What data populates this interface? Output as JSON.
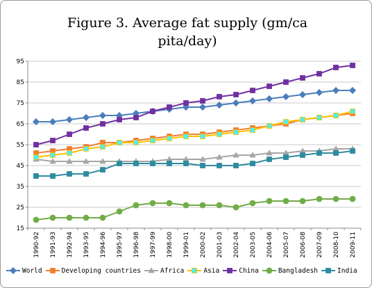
{
  "chart_data": {
    "type": "line",
    "title": "Figure 3. Average fat supply (gm/capita/day)",
    "title_lines": [
      "Figure 3. Average fat supply (gm/ca",
      "pita/day)"
    ],
    "xlabel": "",
    "ylabel": "",
    "ylim": [
      15,
      95
    ],
    "yticks": [
      15,
      25,
      35,
      45,
      55,
      65,
      75,
      85,
      95
    ],
    "grid": "horizontal",
    "legend_position": "bottom",
    "categories": [
      "1990-92",
      "1991-93",
      "1992-94",
      "1993-95",
      "1994-96",
      "1995-97",
      "1996-98",
      "1997-99",
      "1998-00",
      "1999-01",
      "2000-02",
      "2001-03",
      "2002-04",
      "2003-05",
      "2004-06",
      "2005-07",
      "2006-08",
      "2007-09",
      "2008-10",
      "2009-11"
    ],
    "series": [
      {
        "name": "World",
        "color": "#4a7ebb",
        "marker": "diamond",
        "values": [
          66,
          66,
          67,
          68,
          69,
          69,
          70,
          71,
          72,
          73,
          73,
          74,
          75,
          76,
          77,
          78,
          79,
          80,
          81,
          81
        ]
      },
      {
        "name": "Developing countries",
        "color": "#f07f2e",
        "marker": "square",
        "values": [
          51,
          52,
          53,
          54,
          56,
          56,
          57,
          58,
          59,
          60,
          60,
          61,
          62,
          63,
          64,
          65,
          67,
          68,
          69,
          70
        ]
      },
      {
        "name": "Africa",
        "color": "#a5a5a5",
        "marker": "triangle",
        "values": [
          48,
          47,
          47,
          47,
          47,
          47,
          47,
          47,
          48,
          48,
          48,
          49,
          50,
          50,
          51,
          51,
          52,
          52,
          53,
          53
        ]
      },
      {
        "name": "Asia",
        "color": "#ffc000",
        "fill": "#4ff0e8",
        "marker": "square",
        "values": [
          49,
          50,
          51,
          53,
          54,
          56,
          56,
          57,
          58,
          59,
          59,
          60,
          61,
          62,
          64,
          66,
          67,
          68,
          69,
          71
        ]
      },
      {
        "name": "China",
        "color": "#7030a0",
        "marker": "square",
        "values": [
          55,
          57,
          60,
          63,
          65,
          67,
          68,
          71,
          73,
          75,
          76,
          78,
          79,
          81,
          83,
          85,
          87,
          89,
          92,
          93
        ]
      },
      {
        "name": "Bangladesh",
        "color": "#70ad47",
        "marker": "circle",
        "values": [
          19,
          20,
          20,
          20,
          20,
          23,
          26,
          27,
          27,
          26,
          26,
          26,
          25,
          27,
          28,
          28,
          28,
          29,
          29,
          29
        ]
      },
      {
        "name": "India",
        "color": "#2e8ba0",
        "marker": "square",
        "values": [
          40,
          40,
          41,
          41,
          43,
          46,
          46,
          46,
          46,
          46,
          45,
          45,
          45,
          46,
          48,
          49,
          50,
          51,
          51,
          52
        ]
      }
    ]
  }
}
